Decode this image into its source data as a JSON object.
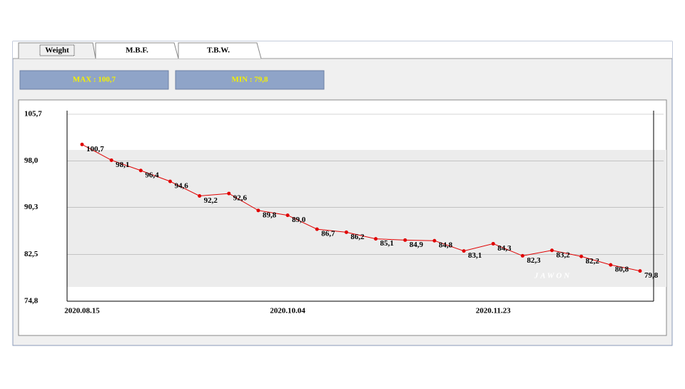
{
  "tabs": [
    "Weight",
    "M.B.F.",
    "T.B.W."
  ],
  "max_label": "MAX : 100,7",
  "min_label": "MIN : 79,8",
  "watermark": "JAWON",
  "chart_data": {
    "type": "line",
    "categories": [
      "2020.08.15",
      null,
      null,
      null,
      null,
      null,
      null,
      "2020.10.04",
      null,
      null,
      null,
      null,
      null,
      null,
      "2020.11.23",
      null,
      null,
      null,
      null,
      null
    ],
    "values": [
      100.7,
      98.1,
      96.4,
      94.6,
      92.2,
      92.6,
      89.8,
      89.0,
      86.7,
      86.2,
      85.1,
      84.9,
      84.8,
      83.1,
      84.3,
      82.3,
      83.2,
      82.2,
      80.8,
      79.8
    ],
    "value_labels": [
      "100,7",
      "98,1",
      "96,4",
      "94,6",
      "92,2",
      "92,6",
      "89,8",
      "89,0",
      "86,7",
      "86,2",
      "85,1",
      "84,9",
      "84,8",
      "83,1",
      "84,3",
      "82,3",
      "83,2",
      "82,2",
      "80,8",
      "79,8"
    ],
    "color": "#e00000",
    "ylim": [
      74.8,
      105.7
    ],
    "yticks": [
      {
        "value": 74.8,
        "label": "74,8"
      },
      {
        "value": 82.5,
        "label": "82,5"
      },
      {
        "value": 90.3,
        "label": "90,3"
      },
      {
        "value": 98.0,
        "label": "98,0"
      },
      {
        "value": 105.7,
        "label": "105,7"
      }
    ],
    "grid": true
  }
}
